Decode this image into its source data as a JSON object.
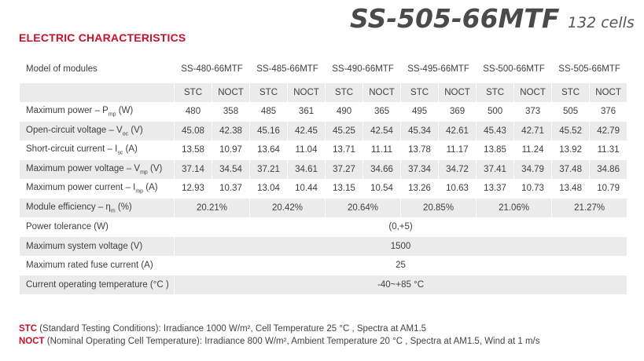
{
  "header": {
    "model_name": "SS-505-66MTF",
    "cells": "132 cells"
  },
  "section_title": "ELECTRIC CHARACTERISTICS",
  "table": {
    "model_header": "Model of modules",
    "models": [
      "SS-480-66MTF",
      "SS-485-66MTF",
      "SS-490-66MTF",
      "SS-495-66MTF",
      "SS-500-66MTF",
      "SS-505-66MTF"
    ],
    "condition_labels": [
      "STC",
      "NOCT"
    ],
    "paired_rows": [
      {
        "label": "Maximum power – P",
        "sub": "mp",
        "unit": " (W)",
        "values": [
          "480",
          "358",
          "485",
          "361",
          "490",
          "365",
          "495",
          "369",
          "500",
          "373",
          "505",
          "376"
        ]
      },
      {
        "label": "Open-circuit voltage – V",
        "sub": "oc",
        "unit": " (V)",
        "values": [
          "45.08",
          "42.38",
          "45.16",
          "42.45",
          "45.25",
          "42.54",
          "45.34",
          "42.61",
          "45.43",
          "42.71",
          "45.52",
          "42.79"
        ]
      },
      {
        "label": "Short-circuit current – I",
        "sub": "sc",
        "unit": " (A)",
        "values": [
          "13.58",
          "10.97",
          "13.64",
          "11.04",
          "13.71",
          "11.11",
          "13.78",
          "11.17",
          "13.85",
          "11.24",
          "13.92",
          "11.31"
        ]
      },
      {
        "label": "Maximum power voltage – V",
        "sub": "mp",
        "unit": " (V)",
        "values": [
          "37.14",
          "34.54",
          "37.21",
          "34.61",
          "37.27",
          "34.66",
          "37.34",
          "34.72",
          "37.41",
          "34.79",
          "37.48",
          "34.86"
        ]
      },
      {
        "label": "Maximum power current – I",
        "sub": "mp",
        "unit": " (A)",
        "values": [
          "12.93",
          "10.37",
          "13.04",
          "10.44",
          "13.15",
          "10.54",
          "13.26",
          "10.63",
          "13.37",
          "10.73",
          "13.48",
          "10.79"
        ]
      }
    ],
    "efficiency_row": {
      "label": "Module efficiency – η",
      "sub": "m",
      "unit": " (%)",
      "values": [
        "20.21%",
        "20.42%",
        "20.64%",
        "20.85%",
        "21.06%",
        "21.27%"
      ]
    },
    "merged_rows": [
      {
        "label": "Power tolerance (W)",
        "value": "(0,+5)"
      },
      {
        "label": "Maximum system voltage (V)",
        "value": "1500"
      },
      {
        "label": "Maximum rated fuse current (A)",
        "value": "25"
      },
      {
        "label": "Current operating temperature (°C )",
        "value": "-40~+85 °C"
      }
    ]
  },
  "footnotes": {
    "stc_key": "STC",
    "stc_text": " (Standard Testing Conditions): Irradiance 1000 W/m², Cell Temperature 25 °C , Spectra at AM1.5",
    "noct_key": "NOCT",
    "noct_text": " (Nominal Operating Cell Temperature): Irradiance 800 W/m², Ambient Temperature 20 °C , Spectra at AM1.5, Wind at 1 m/s"
  }
}
